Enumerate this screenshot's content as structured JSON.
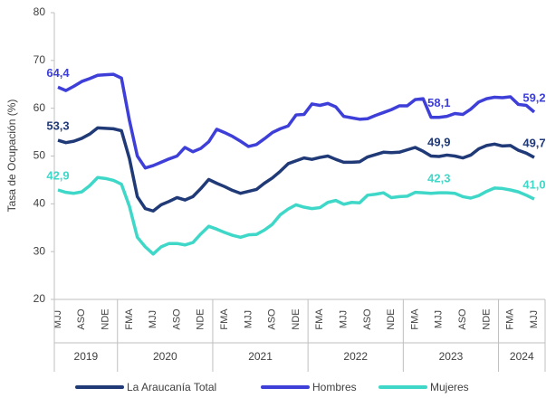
{
  "chart_data": {
    "type": "line",
    "y_label": "Tasa de Ocupación (%)",
    "ylim": [
      20,
      80
    ],
    "yticks": [
      20,
      30,
      40,
      50,
      60,
      70,
      80
    ],
    "categories": [
      "MJJ",
      null,
      null,
      "ASO",
      null,
      null,
      "NDE",
      null,
      null,
      "FMA",
      null,
      null,
      "MJJ",
      null,
      null,
      "ASO",
      null,
      null,
      "NDE",
      null,
      null,
      "FMA",
      null,
      null,
      "MJJ",
      null,
      null,
      "ASO",
      null,
      null,
      "NDE",
      null,
      null,
      "FMA",
      null,
      null,
      "MJJ",
      null,
      null,
      "ASO",
      null,
      null,
      "NDE",
      null,
      null,
      "FMA",
      null,
      null,
      "MJJ",
      null,
      null,
      "ASO",
      null,
      null,
      "NDE",
      null,
      null,
      "FMA",
      null,
      null,
      "MJJ"
    ],
    "years": [
      "2019",
      "2020",
      "2021",
      "2022",
      "2023",
      "2024"
    ],
    "series": [
      {
        "name": "La Araucanía Total",
        "color": "#203a78",
        "values": [
          53.3,
          52.8,
          53.1,
          53.7,
          54.6,
          55.9,
          55.8,
          55.7,
          55.3,
          49.5,
          41.5,
          39.0,
          38.5,
          39.8,
          40.5,
          41.3,
          40.8,
          41.5,
          43.2,
          45.1,
          44.3,
          43.6,
          42.8,
          42.2,
          42.6,
          43.0,
          44.3,
          45.4,
          46.8,
          48.4,
          49.0,
          49.6,
          49.3,
          49.7,
          50.0,
          49.3,
          48.7,
          48.7,
          48.8,
          49.8,
          50.3,
          50.8,
          50.7,
          50.8,
          51.3,
          51.8,
          51.0,
          50.0,
          49.9,
          50.2,
          50.0,
          49.6,
          50.2,
          51.5,
          52.2,
          52.5,
          52.1,
          52.2,
          51.2,
          50.6,
          49.7
        ],
        "value_labels": [
          "53,3",
          null,
          null,
          null,
          null,
          null,
          null,
          null,
          null,
          null,
          null,
          null,
          null,
          null,
          null,
          null,
          null,
          null,
          null,
          null,
          null,
          null,
          null,
          null,
          null,
          null,
          null,
          null,
          null,
          null,
          null,
          null,
          null,
          null,
          null,
          null,
          null,
          null,
          null,
          null,
          null,
          null,
          null,
          null,
          null,
          null,
          null,
          null,
          "49,9",
          null,
          null,
          null,
          null,
          null,
          null,
          null,
          null,
          null,
          null,
          null,
          "49,7"
        ]
      },
      {
        "name": "Hombres",
        "color": "#3e3fd9",
        "values": [
          64.4,
          63.7,
          64.6,
          65.6,
          66.2,
          66.9,
          67.0,
          67.1,
          66.3,
          57.5,
          50.0,
          47.5,
          48.0,
          48.7,
          49.4,
          50.0,
          51.8,
          50.9,
          51.6,
          53.0,
          55.6,
          54.9,
          54.1,
          53.1,
          52.0,
          52.4,
          53.6,
          54.9,
          55.7,
          56.3,
          58.6,
          58.7,
          60.9,
          60.6,
          61.0,
          60.3,
          58.3,
          58.0,
          57.7,
          57.8,
          58.5,
          59.1,
          59.7,
          60.5,
          60.5,
          61.8,
          62.0,
          58.1,
          58.1,
          58.3,
          58.9,
          58.7,
          59.8,
          61.3,
          62.0,
          62.3,
          62.2,
          62.4,
          60.8,
          60.6,
          59.2
        ],
        "value_labels": [
          "64,4",
          null,
          null,
          null,
          null,
          null,
          null,
          null,
          null,
          null,
          null,
          null,
          null,
          null,
          null,
          null,
          null,
          null,
          null,
          null,
          null,
          null,
          null,
          null,
          null,
          null,
          null,
          null,
          null,
          null,
          null,
          null,
          null,
          null,
          null,
          null,
          null,
          null,
          null,
          null,
          null,
          null,
          null,
          null,
          null,
          null,
          null,
          null,
          "58,1",
          null,
          null,
          null,
          null,
          null,
          null,
          null,
          null,
          null,
          null,
          null,
          "59,2"
        ]
      },
      {
        "name": "Mujeres",
        "color": "#3fd8c8",
        "values": [
          42.9,
          42.4,
          42.2,
          42.5,
          43.8,
          45.5,
          45.3,
          44.9,
          44.1,
          39.5,
          33.0,
          31.0,
          29.5,
          31.0,
          31.7,
          31.7,
          31.4,
          31.9,
          33.7,
          35.3,
          34.7,
          34.0,
          33.4,
          33.0,
          33.5,
          33.6,
          34.5,
          35.7,
          37.7,
          38.9,
          39.8,
          39.3,
          39.0,
          39.2,
          40.3,
          40.7,
          39.9,
          40.3,
          40.2,
          41.8,
          42.0,
          42.3,
          41.3,
          41.5,
          41.6,
          42.4,
          42.3,
          42.2,
          42.3,
          42.3,
          42.2,
          41.5,
          41.2,
          41.7,
          42.6,
          43.3,
          43.2,
          42.9,
          42.5,
          41.8,
          41.0
        ],
        "value_labels": [
          "42,9",
          null,
          null,
          null,
          null,
          null,
          null,
          null,
          null,
          null,
          null,
          null,
          null,
          null,
          null,
          null,
          null,
          null,
          null,
          null,
          null,
          null,
          null,
          null,
          null,
          null,
          null,
          null,
          null,
          null,
          null,
          null,
          null,
          null,
          null,
          null,
          null,
          null,
          null,
          null,
          null,
          null,
          null,
          null,
          null,
          null,
          null,
          null,
          "42,3",
          null,
          null,
          null,
          null,
          null,
          null,
          null,
          null,
          null,
          null,
          null,
          "41,0"
        ]
      }
    ]
  }
}
